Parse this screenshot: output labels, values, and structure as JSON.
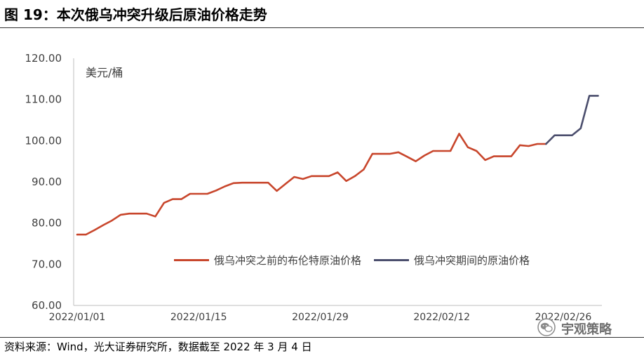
{
  "figure": {
    "source": "资料来源：Wind，光大证券研究所，数据截至 2022 年 3 月 4 日",
    "watermark": "宇观策略",
    "watermark_icon": "wechat-icon"
  },
  "chart_data": {
    "type": "line",
    "title": "图 19：本次俄乌冲突升级后原油价格走势",
    "xlabel": "",
    "ylabel": "美元/桶",
    "ylim": [
      60,
      120
    ],
    "yticks": [
      "60.00",
      "70.00",
      "80.00",
      "90.00",
      "100.00",
      "110.00",
      "120.00"
    ],
    "xticks": [
      "2022/01/01",
      "2022/01/15",
      "2022/01/29",
      "2022/02/12",
      "2022/02/26"
    ],
    "grid": false,
    "legend_position": "inside-bottom",
    "series": [
      {
        "name": "俄乌冲突之前的布伦特原油价格",
        "color": "#C8462C",
        "points": [
          [
            "2022/01/01",
            77.2
          ],
          [
            "2022/01/02",
            77.2
          ],
          [
            "2022/01/03",
            78.3
          ],
          [
            "2022/01/04",
            79.5
          ],
          [
            "2022/01/05",
            80.6
          ],
          [
            "2022/01/06",
            82.0
          ],
          [
            "2022/01/07",
            82.3
          ],
          [
            "2022/01/08",
            82.3
          ],
          [
            "2022/01/09",
            82.3
          ],
          [
            "2022/01/10",
            81.6
          ],
          [
            "2022/01/11",
            84.9
          ],
          [
            "2022/01/12",
            85.8
          ],
          [
            "2022/01/13",
            85.8
          ],
          [
            "2022/01/14",
            87.1
          ],
          [
            "2022/01/15",
            87.1
          ],
          [
            "2022/01/16",
            87.1
          ],
          [
            "2022/01/17",
            87.9
          ],
          [
            "2022/01/18",
            88.9
          ],
          [
            "2022/01/19",
            89.7
          ],
          [
            "2022/01/20",
            89.8
          ],
          [
            "2022/01/21",
            89.8
          ],
          [
            "2022/01/22",
            89.8
          ],
          [
            "2022/01/23",
            89.8
          ],
          [
            "2022/01/24",
            87.8
          ],
          [
            "2022/01/25",
            89.5
          ],
          [
            "2022/01/26",
            91.2
          ],
          [
            "2022/01/27",
            90.7
          ],
          [
            "2022/01/28",
            91.4
          ],
          [
            "2022/01/29",
            91.4
          ],
          [
            "2022/01/30",
            91.4
          ],
          [
            "2022/01/31",
            92.3
          ],
          [
            "2022/02/01",
            90.2
          ],
          [
            "2022/02/02",
            91.4
          ],
          [
            "2022/02/03",
            93.0
          ],
          [
            "2022/02/04",
            96.8
          ],
          [
            "2022/02/05",
            96.8
          ],
          [
            "2022/02/06",
            96.8
          ],
          [
            "2022/02/07",
            97.2
          ],
          [
            "2022/02/08",
            96.1
          ],
          [
            "2022/02/09",
            95.0
          ],
          [
            "2022/02/10",
            96.4
          ],
          [
            "2022/02/11",
            97.5
          ],
          [
            "2022/02/12",
            97.5
          ],
          [
            "2022/02/13",
            97.5
          ],
          [
            "2022/02/14",
            101.7
          ],
          [
            "2022/02/15",
            98.4
          ],
          [
            "2022/02/16",
            97.5
          ],
          [
            "2022/02/17",
            95.3
          ],
          [
            "2022/02/18",
            96.2
          ],
          [
            "2022/02/19",
            96.2
          ],
          [
            "2022/02/20",
            96.2
          ],
          [
            "2022/02/21",
            98.9
          ],
          [
            "2022/02/22",
            98.7
          ],
          [
            "2022/02/23",
            99.2
          ],
          [
            "2022/02/24",
            99.2
          ]
        ]
      },
      {
        "name": "俄乌冲突期间的原油价格",
        "color": "#4B4E6D",
        "points": [
          [
            "2022/02/24",
            99.2
          ],
          [
            "2022/02/25",
            101.3
          ],
          [
            "2022/02/26",
            101.3
          ],
          [
            "2022/02/27",
            101.3
          ],
          [
            "2022/02/28",
            103.0
          ],
          [
            "2022/03/01",
            110.9
          ],
          [
            "2022/03/02",
            110.9
          ]
        ]
      }
    ]
  }
}
